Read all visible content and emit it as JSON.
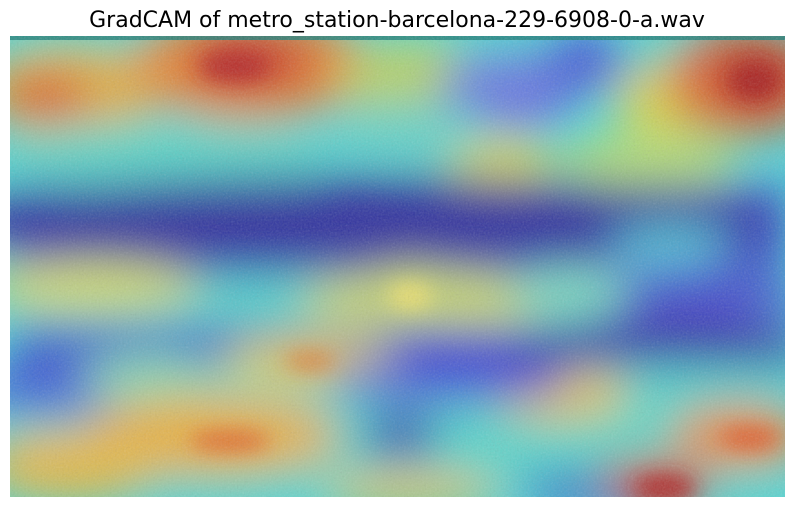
{
  "figure": {
    "title": "GradCAM of metro_station-barcelona-229-6908-0-a.wav",
    "colormap": "jet",
    "overlay": "gradcam-heatmap-over-spectrogram",
    "axes_visible": false
  }
}
